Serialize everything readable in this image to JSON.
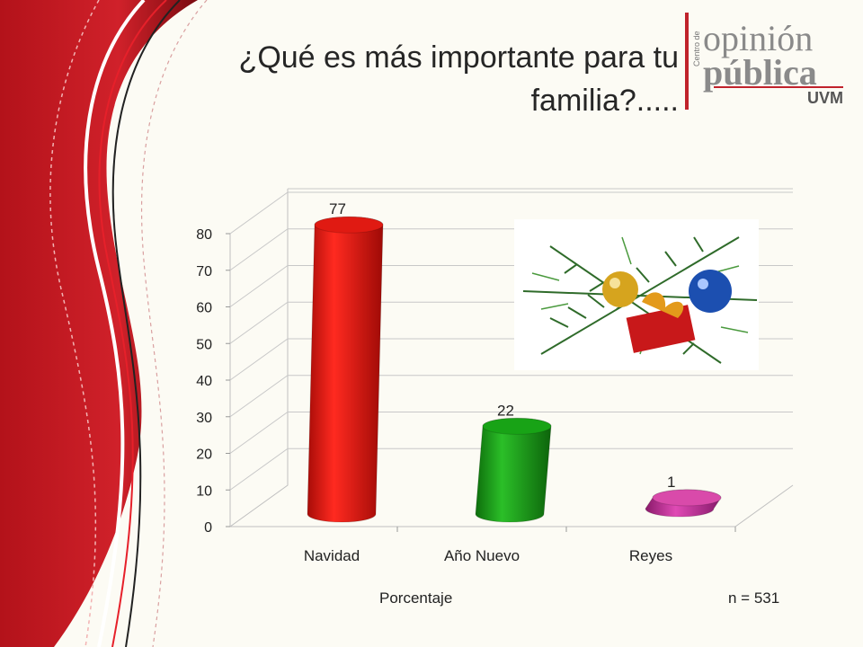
{
  "slide": {
    "title": "¿Qué es más importante para tu familia?.....",
    "footer_left": "Porcentaje",
    "footer_right": "n = 531"
  },
  "logo": {
    "line1": "opinión",
    "line2": "pública",
    "tag": "UVM",
    "side": "Centro de",
    "accent_color": "#c0222b"
  },
  "image": {
    "icon": "christmas-ornaments-image"
  },
  "chart_data": {
    "type": "bar",
    "style": "3d-cylinder",
    "categories": [
      "Navidad",
      "Año Nuevo",
      "Reyes"
    ],
    "values": [
      77,
      22,
      1
    ],
    "colors": [
      "#e3140f",
      "#1d9b1a",
      "#c2309a"
    ],
    "data_labels": [
      "77",
      "22",
      "1"
    ],
    "yticks": [
      0,
      10,
      20,
      30,
      40,
      50,
      60,
      70,
      80
    ],
    "ylim": [
      0,
      80
    ],
    "grid": true,
    "legend": "none",
    "title": "",
    "xlabel": "",
    "ylabel": ""
  }
}
